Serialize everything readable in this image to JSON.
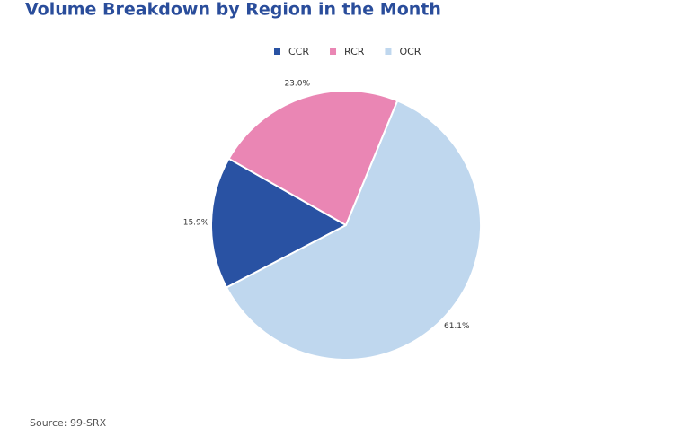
{
  "chart_data": {
    "type": "pie",
    "title": "Volume Breakdown by Region in the Month",
    "categories": [
      "CCR",
      "RCR",
      "OCR"
    ],
    "values": [
      15.9,
      23.0,
      61.1
    ],
    "value_labels": [
      "15.9%",
      "23.0%",
      "61.1%"
    ],
    "colors": [
      "#2952a3",
      "#ea86b4",
      "#bfd7ee"
    ],
    "legend": "top",
    "source": "Source: 99-SRX"
  }
}
